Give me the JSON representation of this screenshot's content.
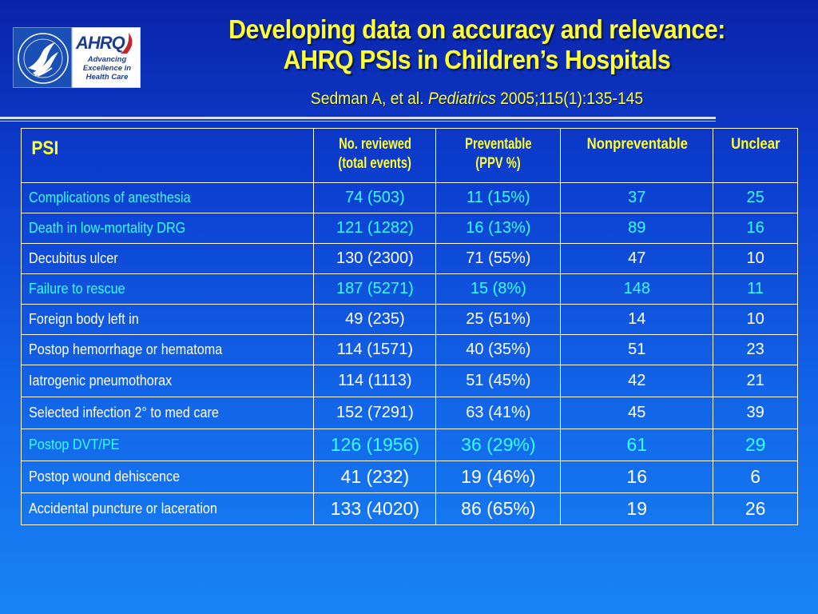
{
  "logos": {
    "hhs_icon": "hhs-eagle-icon",
    "ahrq_mark": "AHRQ",
    "ahrq_tagline": [
      "Advancing",
      "Excellence in",
      "Health Care"
    ]
  },
  "title": {
    "line1": "Developing data on accuracy and relevance:",
    "line2": "AHRQ PSIs in Children’s Hospitals"
  },
  "citation": {
    "authors": "Sedman A, et al. ",
    "journal": "Pediatrics",
    "ref": " 2005;115(1):135-145"
  },
  "colors": {
    "heading": "#ffff33",
    "cyan_text": "#33ffff",
    "white_text": "#ffffff",
    "background_top": "#0a24a8",
    "background_bottom": "#1784f5"
  },
  "table": {
    "headers": [
      "PSI",
      "No. reviewed (total events)",
      "Preventable (PPV %)",
      "Nonpreventable",
      "Unclear"
    ],
    "header_lines": [
      [
        "PSI"
      ],
      [
        "No. reviewed",
        "(total events)"
      ],
      [
        "Preventable",
        "(PPV %)"
      ],
      [
        "Nonpreventable"
      ],
      [
        "Unclear"
      ]
    ],
    "rows": [
      {
        "style": "cyan",
        "cells": [
          "Complications of anesthesia",
          "74 (503)",
          "11 (15%)",
          "37",
          "25"
        ]
      },
      {
        "style": "cyan",
        "cells": [
          "Death in low-mortality DRG",
          "121 (1282)",
          "16 (13%)",
          "89",
          "16"
        ]
      },
      {
        "style": "white",
        "cells": [
          "Decubitus ulcer",
          "130 (2300)",
          "71 (55%)",
          "47",
          "10"
        ]
      },
      {
        "style": "cyan",
        "cells": [
          "Failure to rescue",
          "187 (5271)",
          "15 (8%)",
          "148",
          "11"
        ]
      },
      {
        "style": "white",
        "cells": [
          "Foreign body left in",
          "49 (235)",
          "25 (51%)",
          "14",
          "10"
        ]
      },
      {
        "style": "white",
        "cells": [
          "Postop hemorrhage or hematoma",
          "114 (1571)",
          "40 (35%)",
          "51",
          "23"
        ]
      },
      {
        "style": "white",
        "cells": [
          "Iatrogenic pneumothorax",
          "114 (1113)",
          "51 (45%)",
          "42",
          "21"
        ]
      },
      {
        "style": "white",
        "cells": [
          "Selected infection 2° to med care",
          "152 (7291)",
          "63 (41%)",
          "45",
          "39"
        ]
      },
      {
        "style": "cyan big",
        "cells": [
          "Postop DVT/PE",
          "126 (1956)",
          "36 (29%)",
          "61",
          "29"
        ]
      },
      {
        "style": "white big",
        "cells": [
          "Postop wound dehiscence",
          "41 (232)",
          "19 (46%)",
          "16",
          "6"
        ]
      },
      {
        "style": "white big",
        "cells": [
          "Accidental puncture or laceration",
          "133 (4020)",
          "86 (65%)",
          "19",
          "26"
        ]
      }
    ]
  }
}
